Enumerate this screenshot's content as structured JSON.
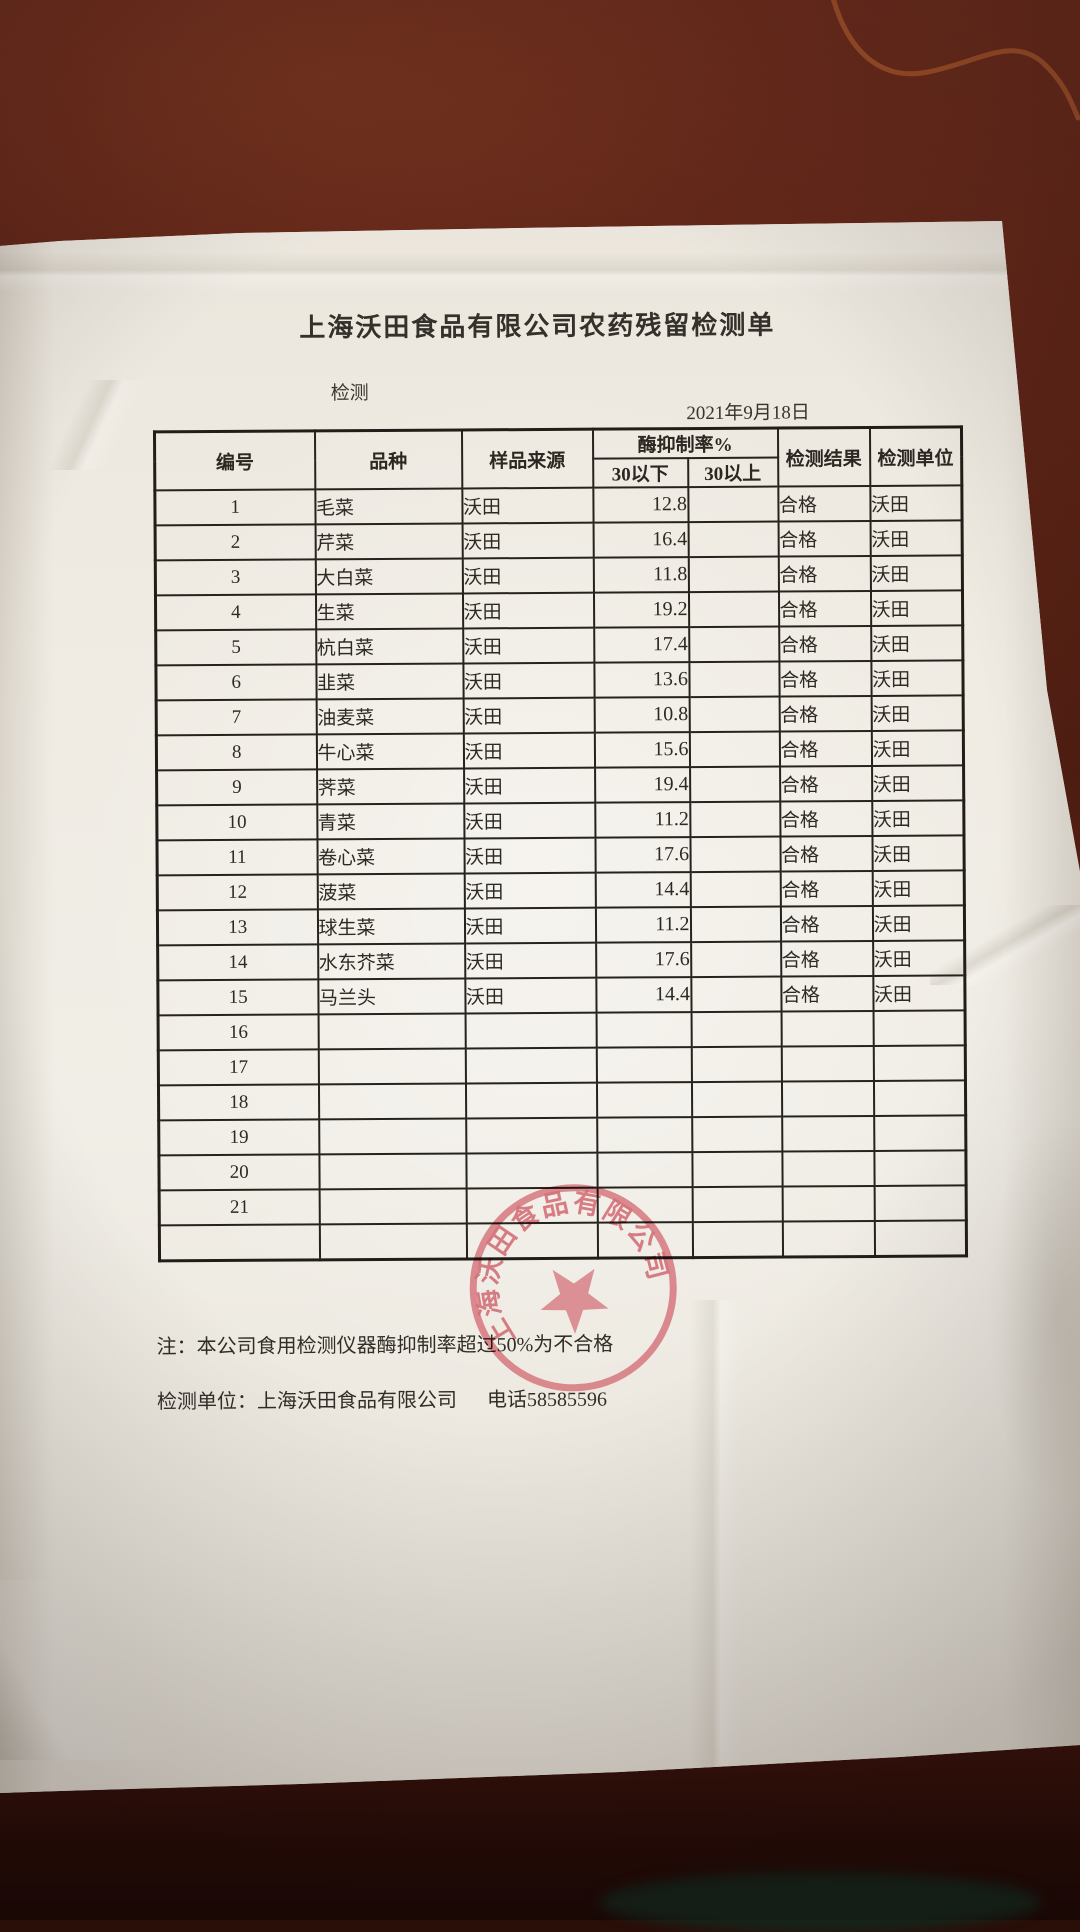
{
  "document": {
    "title": "上海沃田食品有限公司农药残留检测单",
    "section_label": "检测",
    "date": "2021年9月18日",
    "note": "注：本公司食用检测仪器酶抑制率超过50%为不合格",
    "footer": {
      "unit_line": "检测单位：上海沃田食品有限公司",
      "phone": "电话58585596"
    },
    "stamp": {
      "company": "上海沃田食品有限公司",
      "color": "#cf5e68"
    }
  },
  "table": {
    "headers": {
      "col_no": "编号",
      "col_variety": "品种",
      "col_source": "样品来源",
      "col_enzyme": "酶抑制率%",
      "col_below30": "30以下",
      "col_above30": "30以上",
      "col_result": "检测结果",
      "col_unit": "检测单位"
    },
    "rows": [
      {
        "no": "1",
        "variety": "毛菜",
        "source": "沃田",
        "below30": "12.8",
        "above30": "",
        "result": "合格",
        "unit": "沃田"
      },
      {
        "no": "2",
        "variety": "芹菜",
        "source": "沃田",
        "below30": "16.4",
        "above30": "",
        "result": "合格",
        "unit": "沃田"
      },
      {
        "no": "3",
        "variety": "大白菜",
        "source": "沃田",
        "below30": "11.8",
        "above30": "",
        "result": "合格",
        "unit": "沃田"
      },
      {
        "no": "4",
        "variety": "生菜",
        "source": "沃田",
        "below30": "19.2",
        "above30": "",
        "result": "合格",
        "unit": "沃田"
      },
      {
        "no": "5",
        "variety": "杭白菜",
        "source": "沃田",
        "below30": "17.4",
        "above30": "",
        "result": "合格",
        "unit": "沃田"
      },
      {
        "no": "6",
        "variety": "韭菜",
        "source": "沃田",
        "below30": "13.6",
        "above30": "",
        "result": "合格",
        "unit": "沃田"
      },
      {
        "no": "7",
        "variety": "油麦菜",
        "source": "沃田",
        "below30": "10.8",
        "above30": "",
        "result": "合格",
        "unit": "沃田"
      },
      {
        "no": "8",
        "variety": "牛心菜",
        "source": "沃田",
        "below30": "15.6",
        "above30": "",
        "result": "合格",
        "unit": "沃田"
      },
      {
        "no": "9",
        "variety": "荠菜",
        "source": "沃田",
        "below30": "19.4",
        "above30": "",
        "result": "合格",
        "unit": "沃田"
      },
      {
        "no": "10",
        "variety": "青菜",
        "source": "沃田",
        "below30": "11.2",
        "above30": "",
        "result": "合格",
        "unit": "沃田"
      },
      {
        "no": "11",
        "variety": "卷心菜",
        "source": "沃田",
        "below30": "17.6",
        "above30": "",
        "result": "合格",
        "unit": "沃田"
      },
      {
        "no": "12",
        "variety": "菠菜",
        "source": "沃田",
        "below30": "14.4",
        "above30": "",
        "result": "合格",
        "unit": "沃田"
      },
      {
        "no": "13",
        "variety": "球生菜",
        "source": "沃田",
        "below30": "11.2",
        "above30": "",
        "result": "合格",
        "unit": "沃田"
      },
      {
        "no": "14",
        "variety": "水东芥菜",
        "source": "沃田",
        "below30": "17.6",
        "above30": "",
        "result": "合格",
        "unit": "沃田"
      },
      {
        "no": "15",
        "variety": "马兰头",
        "source": "沃田",
        "below30": "14.4",
        "above30": "",
        "result": "合格",
        "unit": "沃田"
      },
      {
        "no": "16",
        "variety": "",
        "source": "",
        "below30": "",
        "above30": "",
        "result": "",
        "unit": ""
      },
      {
        "no": "17",
        "variety": "",
        "source": "",
        "below30": "",
        "above30": "",
        "result": "",
        "unit": ""
      },
      {
        "no": "18",
        "variety": "",
        "source": "",
        "below30": "",
        "above30": "",
        "result": "",
        "unit": ""
      },
      {
        "no": "19",
        "variety": "",
        "source": "",
        "below30": "",
        "above30": "",
        "result": "",
        "unit": ""
      },
      {
        "no": "20",
        "variety": "",
        "source": "",
        "below30": "",
        "above30": "",
        "result": "",
        "unit": ""
      },
      {
        "no": "21",
        "variety": "",
        "source": "",
        "below30": "",
        "above30": "",
        "result": "",
        "unit": ""
      },
      {
        "no": "",
        "variety": "",
        "source": "",
        "below30": "",
        "above30": "",
        "result": "",
        "unit": ""
      }
    ]
  }
}
